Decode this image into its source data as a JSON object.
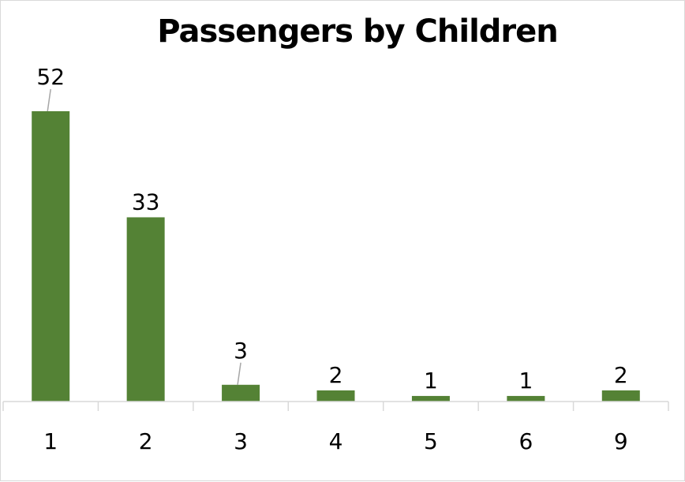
{
  "chart_data": {
    "type": "bar",
    "title": "Passengers by Children",
    "categories": [
      "1",
      "2",
      "3",
      "4",
      "5",
      "6",
      "9"
    ],
    "values": [
      52,
      33,
      3,
      2,
      1,
      1,
      2
    ],
    "xlabel": "",
    "ylabel": "",
    "ylim": [
      0,
      52
    ],
    "grid": false,
    "legend": "none",
    "bar_color": "#548235",
    "axis_color": "#d9d9d9",
    "leader_color": "#a6a6a6"
  }
}
